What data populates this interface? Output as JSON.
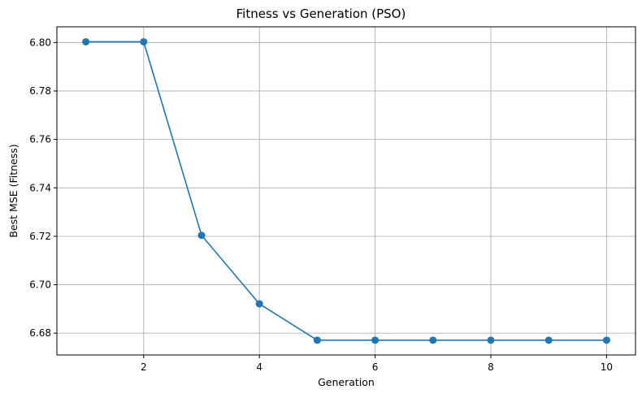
{
  "chart_data": {
    "type": "line",
    "title": "Fitness vs Generation (PSO)",
    "xlabel": "Generation",
    "ylabel": "Best MSE (Fitness)",
    "xlim": [
      0.5,
      10.5
    ],
    "ylim": [
      6.671,
      6.8065
    ],
    "xticks": [
      2,
      4,
      6,
      8,
      10
    ],
    "yticks": [
      6.68,
      6.7,
      6.72,
      6.74,
      6.76,
      6.78,
      6.8
    ],
    "ytick_decimals": 2,
    "grid": true,
    "series": [
      {
        "color": "#1f77b4",
        "marker": "circle",
        "x": [
          1,
          2,
          3,
          4,
          5,
          6,
          7,
          8,
          9,
          10
        ],
        "y": [
          6.8003,
          6.8003,
          6.7204,
          6.6921,
          6.6771,
          6.6771,
          6.6771,
          6.6771,
          6.6771,
          6.6771
        ]
      }
    ]
  }
}
